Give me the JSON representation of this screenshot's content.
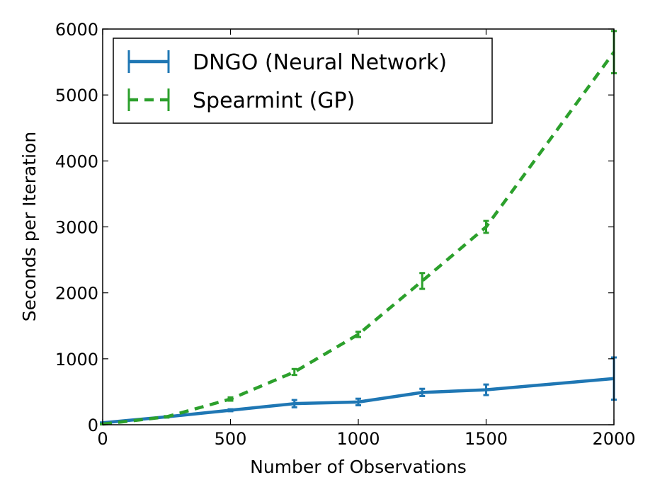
{
  "chart_data": {
    "type": "line",
    "title": "",
    "xlabel": "Number of Observations",
    "ylabel": "Seconds per Iteration",
    "xlim": [
      0,
      2000
    ],
    "ylim": [
      0,
      6000
    ],
    "x_ticks": [
      "0",
      "500",
      "1000",
      "1500",
      "2000"
    ],
    "y_ticks": [
      "0",
      "1000",
      "2000",
      "3000",
      "4000",
      "5000",
      "6000"
    ],
    "x_tick_values": [
      0,
      500,
      1000,
      1500,
      2000
    ],
    "y_tick_values": [
      0,
      1000,
      2000,
      3000,
      4000,
      5000,
      6000
    ],
    "grid": false,
    "legend_position": "top-left",
    "series": [
      {
        "name": "DNGO (Neural Network)",
        "color": "#1f77b4",
        "line_style": "solid",
        "x": [
          0,
          250,
          500,
          750,
          1000,
          1250,
          1500,
          2000
        ],
        "y": [
          30,
          120,
          220,
          320,
          345,
          490,
          530,
          700
        ],
        "error": [
          5,
          10,
          15,
          55,
          50,
          55,
          80,
          320
        ]
      },
      {
        "name": "Spearmint (GP)",
        "color": "#2ca02c",
        "line_style": "dashed",
        "x": [
          0,
          250,
          500,
          750,
          1000,
          1250,
          1500,
          2000
        ],
        "y": [
          10,
          120,
          390,
          800,
          1370,
          2180,
          3000,
          5650
        ],
        "error": [
          5,
          10,
          25,
          45,
          40,
          120,
          90,
          320
        ]
      }
    ]
  }
}
